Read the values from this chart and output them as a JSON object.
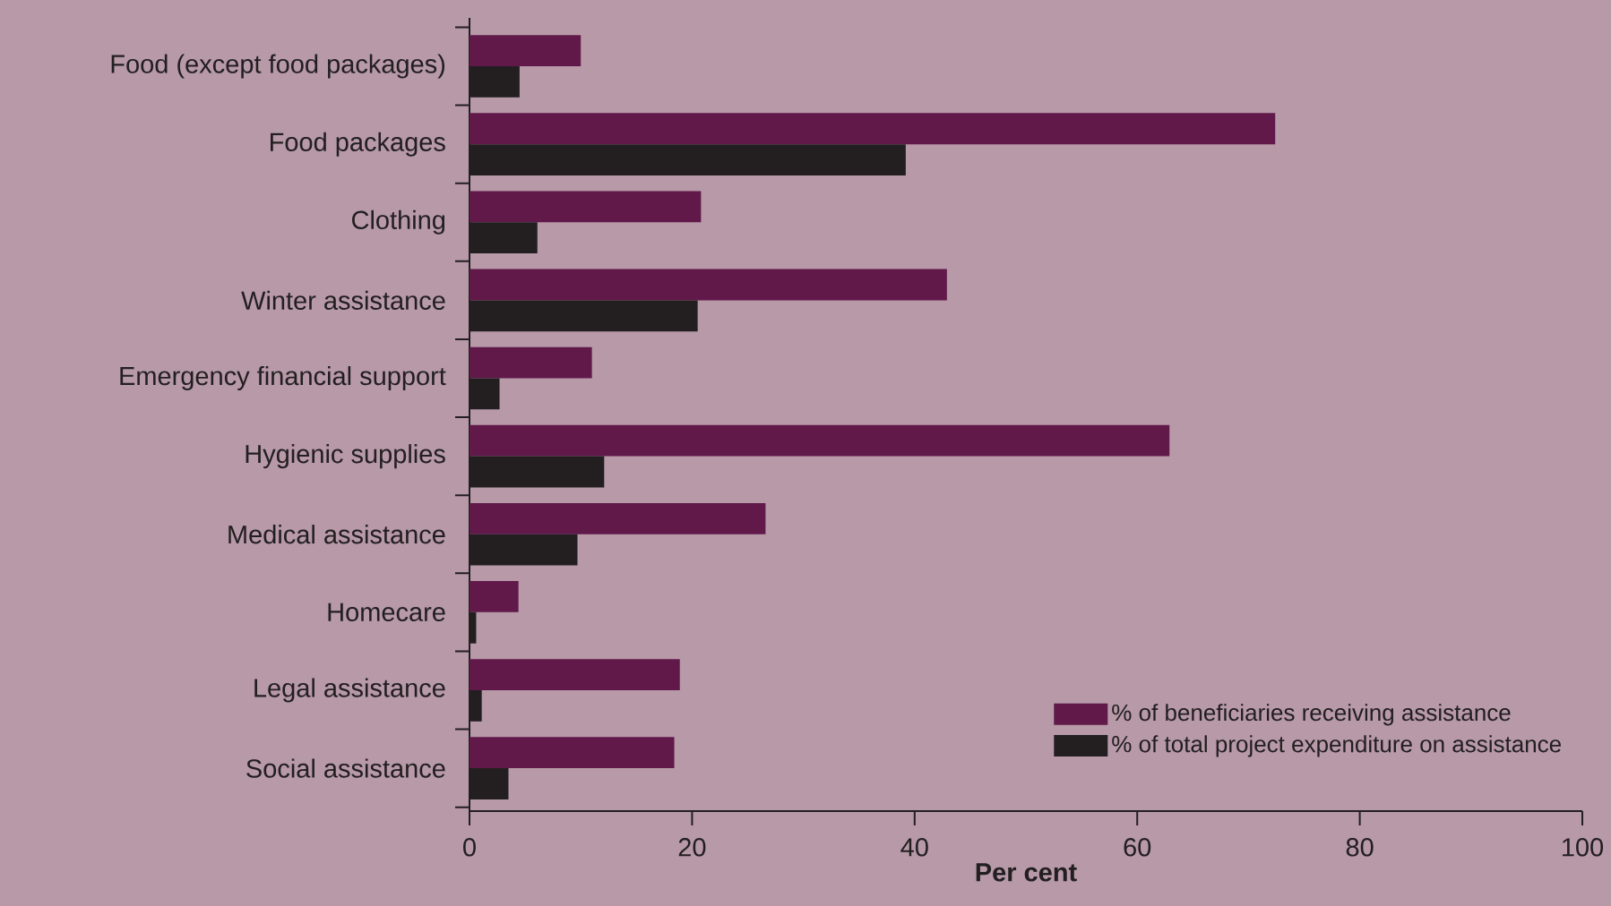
{
  "chart_data": {
    "type": "bar",
    "orientation": "horizontal",
    "xlabel": "Per cent",
    "categories": [
      "Food (except food packages)",
      "Food packages",
      "Clothing",
      "Winter assistance",
      "Emergency financial support",
      "Hygienic supplies",
      "Medical assistance",
      "Homecare",
      "Legal assistance",
      "Social assistance"
    ],
    "series": [
      {
        "name": "% of beneficiaries receiving assistance",
        "color": "#61194a",
        "values": [
          10.0,
          72.4,
          20.8,
          42.9,
          11.0,
          62.9,
          26.6,
          4.4,
          18.9,
          18.4
        ]
      },
      {
        "name": "% of total project expenditure on assistance",
        "color": "#231f20",
        "values": [
          4.5,
          39.2,
          6.1,
          20.5,
          2.7,
          12.1,
          9.7,
          0.6,
          1.1,
          3.5
        ]
      }
    ],
    "xlim": [
      0,
      100
    ],
    "xticks": [
      0,
      20,
      40,
      60,
      80,
      100
    ],
    "grid": false,
    "legend": "bottom right"
  }
}
